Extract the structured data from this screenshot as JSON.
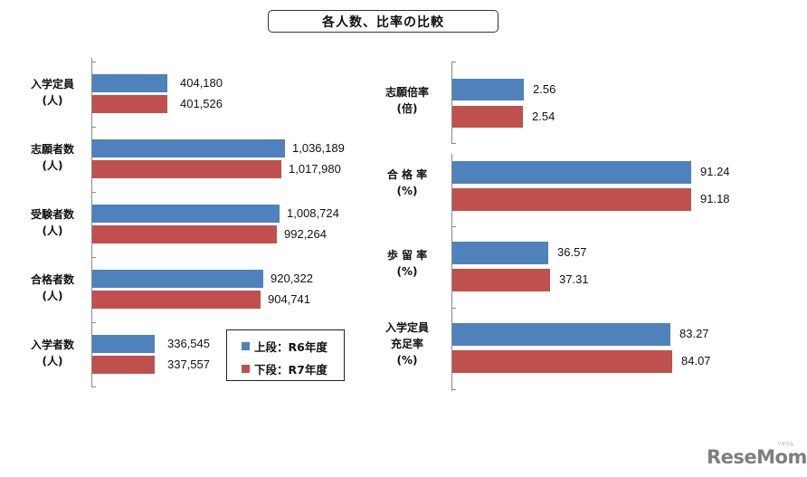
{
  "title": "各人数、比率の比較",
  "legend": {
    "items": [
      {
        "label": "上段：R6年度",
        "color": "#4F81BD"
      },
      {
        "label": "下段：R7年度",
        "color": "#C0504D"
      }
    ]
  },
  "logo": {
    "text": "ReseMom",
    "ruby": "リセマム"
  },
  "chart_data": [
    {
      "type": "bar",
      "orientation": "horizontal",
      "title": "各人数、比率の比較",
      "categories": [
        "入学定員(人)",
        "志願者数(人)",
        "受験者数(人)",
        "合格者数(人)",
        "入学者数(人)"
      ],
      "series": [
        {
          "name": "上段：R6年度",
          "color": "#4F81BD",
          "values": [
            404180,
            1036189,
            1008724,
            920322,
            336545
          ],
          "labels": [
            "404,180",
            "1,036,189",
            "1,008,724",
            "920,322",
            "336,545"
          ]
        },
        {
          "name": "下段：R7年度",
          "color": "#C0504D",
          "values": [
            401526,
            1017980,
            992264,
            904741,
            337557
          ],
          "labels": [
            "401,526",
            "1,017,980",
            "992,264",
            "904,741",
            "337,557"
          ]
        }
      ],
      "grid": false,
      "legend_position": "bottom-right inside"
    },
    {
      "type": "bar",
      "orientation": "horizontal",
      "categories": [
        "志願倍率(倍)",
        "合格率(%)",
        "歩留率(%)",
        "入学定員充足率(%)"
      ],
      "series": [
        {
          "name": "上段：R6年度",
          "color": "#4F81BD",
          "values": [
            2.56,
            91.24,
            36.57,
            83.27
          ],
          "labels": [
            "2.56",
            "91.24",
            "36.57",
            "83.27"
          ]
        },
        {
          "name": "下段：R7年度",
          "color": "#C0504D",
          "values": [
            2.54,
            91.18,
            37.31,
            84.07
          ],
          "labels": [
            "2.54",
            "91.18",
            "37.31",
            "84.07"
          ]
        }
      ],
      "grid": false
    }
  ],
  "left": {
    "cats": [
      {
        "line1": "入学定員",
        "line2": "(人)"
      },
      {
        "line1": "志願者数",
        "line2": "(人)"
      },
      {
        "line1": "受験者数",
        "line2": "(人)"
      },
      {
        "line1": "合格者数",
        "line2": "(人)"
      },
      {
        "line1": "入学者数",
        "line2": "(人)"
      }
    ]
  },
  "right": {
    "cats": [
      {
        "line1": "志願倍率",
        "line2": "(倍)",
        "line3": ""
      },
      {
        "line1": "合 格 率",
        "line2": "(%)",
        "line3": ""
      },
      {
        "line1": "歩 留 率",
        "line2": "(%)",
        "line3": ""
      },
      {
        "line1": "入学定員",
        "line2": "充足率",
        "line3": "(%)"
      }
    ]
  }
}
